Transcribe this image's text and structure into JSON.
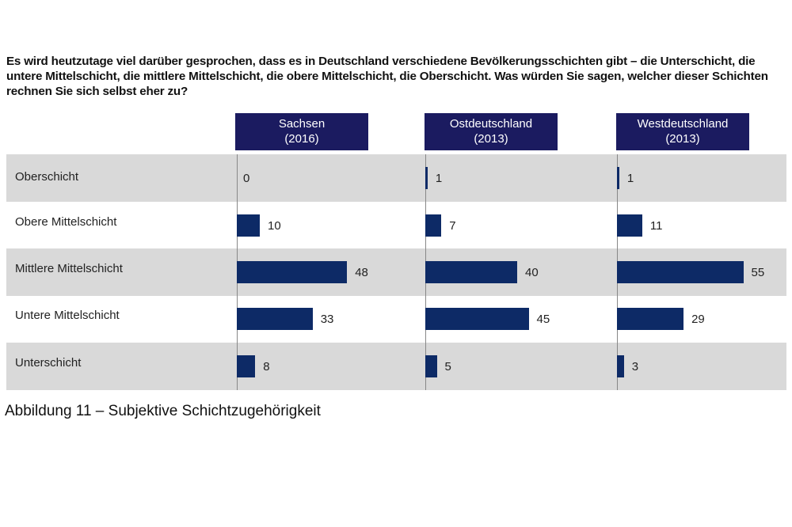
{
  "question": "Es wird heutzutage viel darüber gesprochen, dass es in Deutschland verschiedene Bevölkerungsschichten gibt – die Unterschicht, die untere Mittelschicht, die mittlere Mittelschicht, die obere Mittelschicht, die Oberschicht. Was würden Sie sagen, welcher dieser Schichten rechnen Sie sich selbst eher zu?",
  "caption": "Abbildung 11 – Subjektive Schichtzugehörigkeit",
  "chart_data": {
    "type": "bar",
    "orientation": "horizontal",
    "categories": [
      "Oberschicht",
      "Obere Mittelschicht",
      "Mittlere Mittelschicht",
      "Untere Mittelschicht",
      "Unterschicht"
    ],
    "series": [
      {
        "name": "Sachsen (2016)",
        "line1": "Sachsen",
        "line2": "(2016)",
        "values": [
          0,
          10,
          48,
          33,
          8
        ]
      },
      {
        "name": "Ostdeutschland (2013)",
        "line1": "Ostdeutschland",
        "line2": "(2013)",
        "values": [
          1,
          7,
          40,
          45,
          5
        ]
      },
      {
        "name": "Westdeutschland (2013)",
        "line1": "Westdeutschland",
        "line2": "(2013)",
        "values": [
          1,
          11,
          55,
          29,
          3
        ]
      }
    ],
    "bar_color": "#0d2a66",
    "header_color": "#1b1b60",
    "row_shading": "#d9d9d9"
  }
}
